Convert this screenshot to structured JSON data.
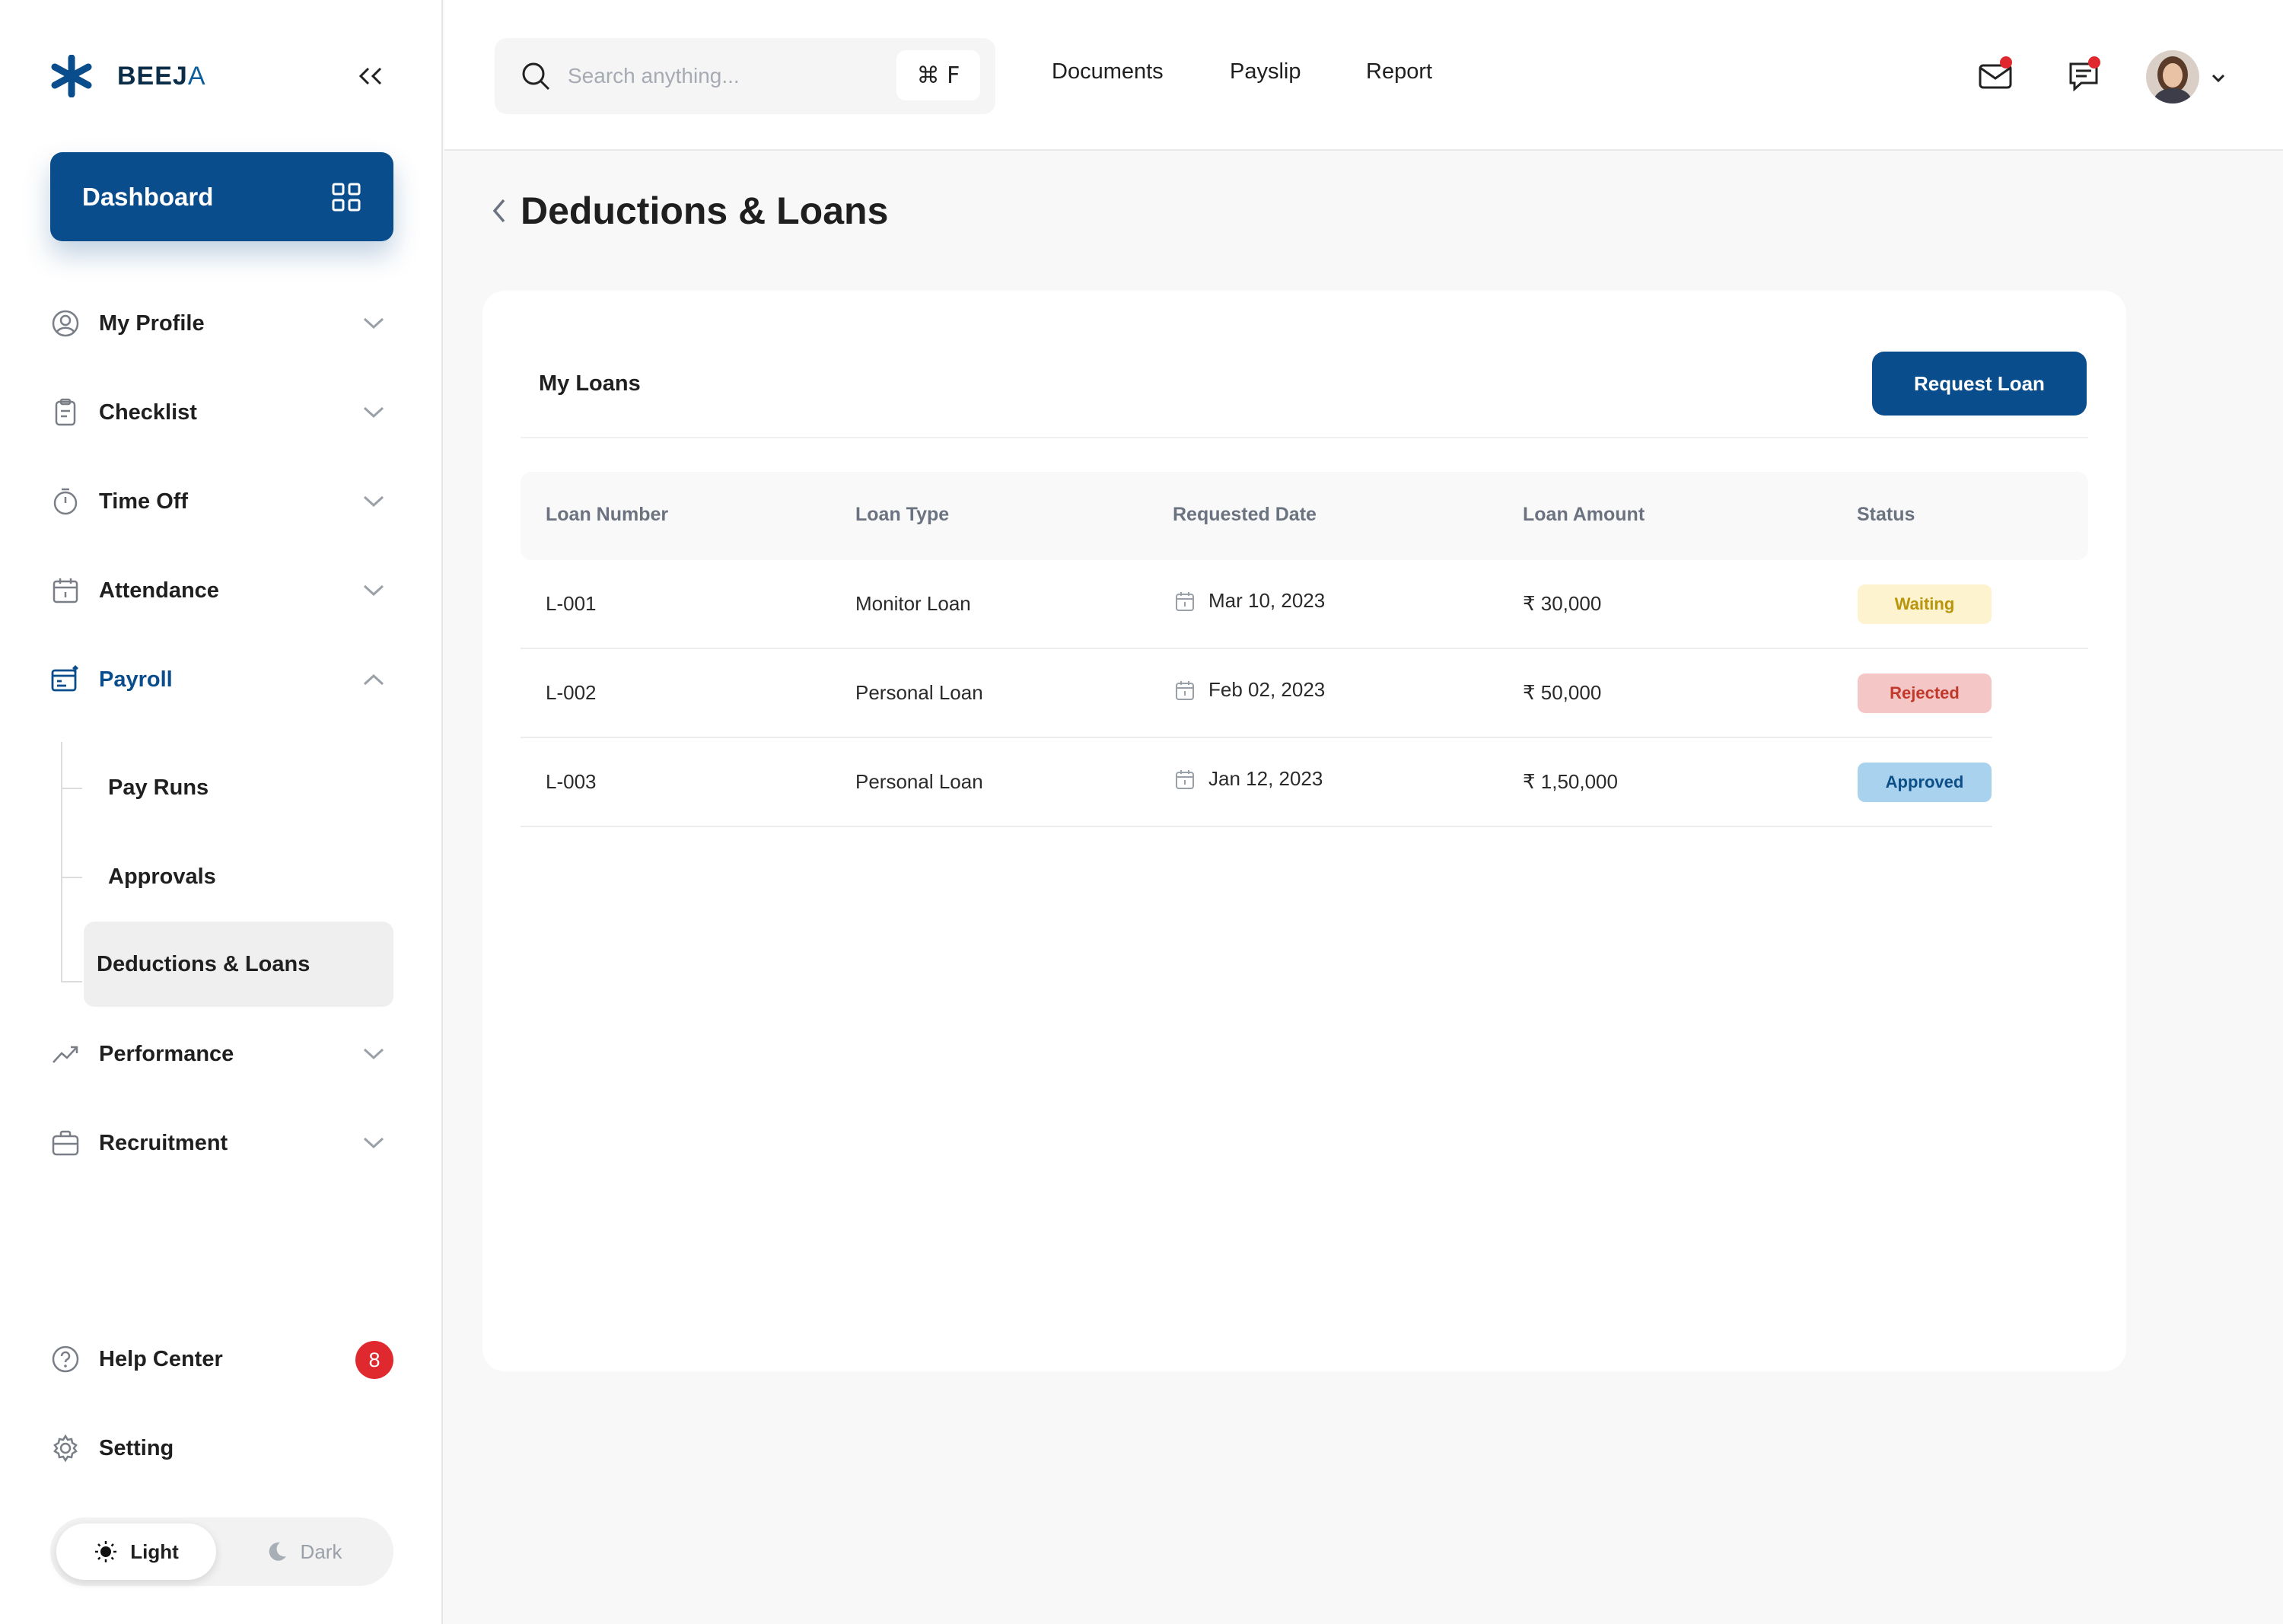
{
  "app": {
    "brand_part1": "BEEJ",
    "brand_part2": "A"
  },
  "sidebar": {
    "dashboard_label": "Dashboard",
    "items": [
      {
        "label": "My Profile",
        "icon": "user-circle-icon"
      },
      {
        "label": "Checklist",
        "icon": "clipboard-icon"
      },
      {
        "label": "Time Off",
        "icon": "stopwatch-icon"
      },
      {
        "label": "Attendance",
        "icon": "calendar-icon"
      },
      {
        "label": "Payroll",
        "icon": "payroll-icon"
      },
      {
        "label": "Performance",
        "icon": "trend-up-icon"
      },
      {
        "label": "Recruitment",
        "icon": "briefcase-icon"
      }
    ],
    "payroll_sub": [
      "Pay Runs",
      "Approvals",
      "Deductions &  Loans"
    ],
    "help_label": "Help Center",
    "help_badge": "8",
    "setting_label": "Setting",
    "theme": {
      "light": "Light",
      "dark": "Dark",
      "selected": "Light"
    }
  },
  "header": {
    "search_placeholder": "Search anything...",
    "shortcut": "⌘ F",
    "links": [
      "Documents",
      "Payslip",
      "Report"
    ]
  },
  "page": {
    "title": "Deductions & Loans",
    "card_title": "My Loans",
    "request_button": "Request Loan"
  },
  "table": {
    "columns": [
      "Loan Number",
      "Loan Type",
      "Requested Date",
      "Loan Amount",
      "Status"
    ],
    "rows": [
      {
        "number": "L-001",
        "type": "Monitor Loan",
        "date": "Mar 10, 2023",
        "amount": "₹ 30,000",
        "status": "Waiting"
      },
      {
        "number": "L-002",
        "type": "Personal Loan",
        "date": "Feb 02, 2023",
        "amount": "₹ 50,000",
        "status": "Rejected"
      },
      {
        "number": "L-003",
        "type": "Personal Loan",
        "date": "Jan 12, 2023",
        "amount": "₹ 1,50,000",
        "status": "Approved"
      }
    ]
  },
  "colors": {
    "primary": "#0a4d8c",
    "waiting_bg": "#fdf3cf",
    "waiting_text": "#b8950a",
    "rejected_bg": "#f4c6c6",
    "rejected_text": "#c0392b",
    "approved_bg": "#a9d2ee",
    "approved_text": "#0b4f86",
    "notification": "#e0282f"
  }
}
